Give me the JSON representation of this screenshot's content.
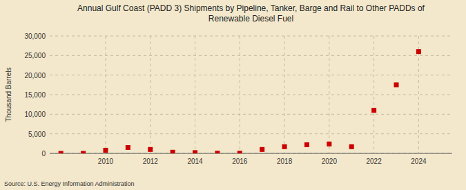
{
  "chart_data": {
    "type": "scatter",
    "title": "Annual Gulf Coast (PADD 3) Shipments by Pipeline, Tanker, Barge and Rail to Other PADDs of\nRenewable Diesel Fuel",
    "ylabel": "Thousand Barrels",
    "source": "Source: U.S. Energy Information Administration",
    "x": [
      2008,
      2009,
      2010,
      2011,
      2012,
      2013,
      2014,
      2015,
      2016,
      2017,
      2018,
      2019,
      2020,
      2021,
      2022,
      2023,
      2024
    ],
    "values": [
      0,
      0,
      800,
      1500,
      1000,
      300,
      200,
      50,
      50,
      1000,
      1700,
      2200,
      2400,
      1700,
      11000,
      17500,
      26000
    ],
    "color": "#cc0000",
    "marker": "square",
    "xlim": [
      2007.5,
      2025.5
    ],
    "xticks": [
      2010,
      2012,
      2014,
      2016,
      2018,
      2020,
      2022,
      2024
    ],
    "ylim": [
      0,
      30000
    ],
    "yticks": [
      0,
      {
        "value": 5000,
        "label": "5,000"
      },
      {
        "value": 10000,
        "label": "10,000"
      },
      {
        "value": 15000,
        "label": "15,000"
      },
      {
        "value": 20000,
        "label": "20,000"
      },
      {
        "value": 25000,
        "label": "25,000"
      },
      {
        "value": 30000,
        "label": "30,000"
      }
    ],
    "grid": true
  }
}
